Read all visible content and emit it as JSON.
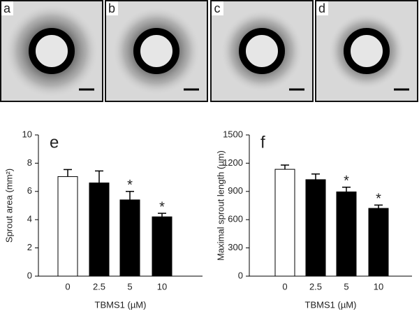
{
  "panels": [
    {
      "label": "a"
    },
    {
      "label": "b"
    },
    {
      "label": "c"
    },
    {
      "label": "d"
    }
  ],
  "chart_data": [
    {
      "type": "bar",
      "panel_label": "e",
      "ylabel": "Sprout area (mm²)",
      "xlabel": "TBMS1 (µM)",
      "categories": [
        "0",
        "2.5",
        "5",
        "10"
      ],
      "values": [
        7.05,
        6.6,
        5.4,
        4.2
      ],
      "errors": [
        0.5,
        0.85,
        0.6,
        0.25
      ],
      "colors": [
        "#ffffff",
        "#000000",
        "#000000",
        "#000000"
      ],
      "significance": [
        null,
        null,
        "*",
        "*"
      ],
      "ylim": [
        0,
        10
      ],
      "yticks": [
        0,
        2,
        4,
        6,
        8,
        10
      ]
    },
    {
      "type": "bar",
      "panel_label": "f",
      "ylabel": "Maximal sprout length (µm)",
      "xlabel": "TBMS1 (µM)",
      "categories": [
        "0",
        "2.5",
        "5",
        "10"
      ],
      "values": [
        1135,
        1025,
        895,
        720
      ],
      "errors": [
        45,
        60,
        50,
        35
      ],
      "colors": [
        "#ffffff",
        "#000000",
        "#000000",
        "#000000"
      ],
      "significance": [
        null,
        null,
        "*",
        "*"
      ],
      "ylim": [
        0,
        1500
      ],
      "yticks": [
        0,
        300,
        600,
        900,
        1200,
        1500
      ]
    }
  ]
}
